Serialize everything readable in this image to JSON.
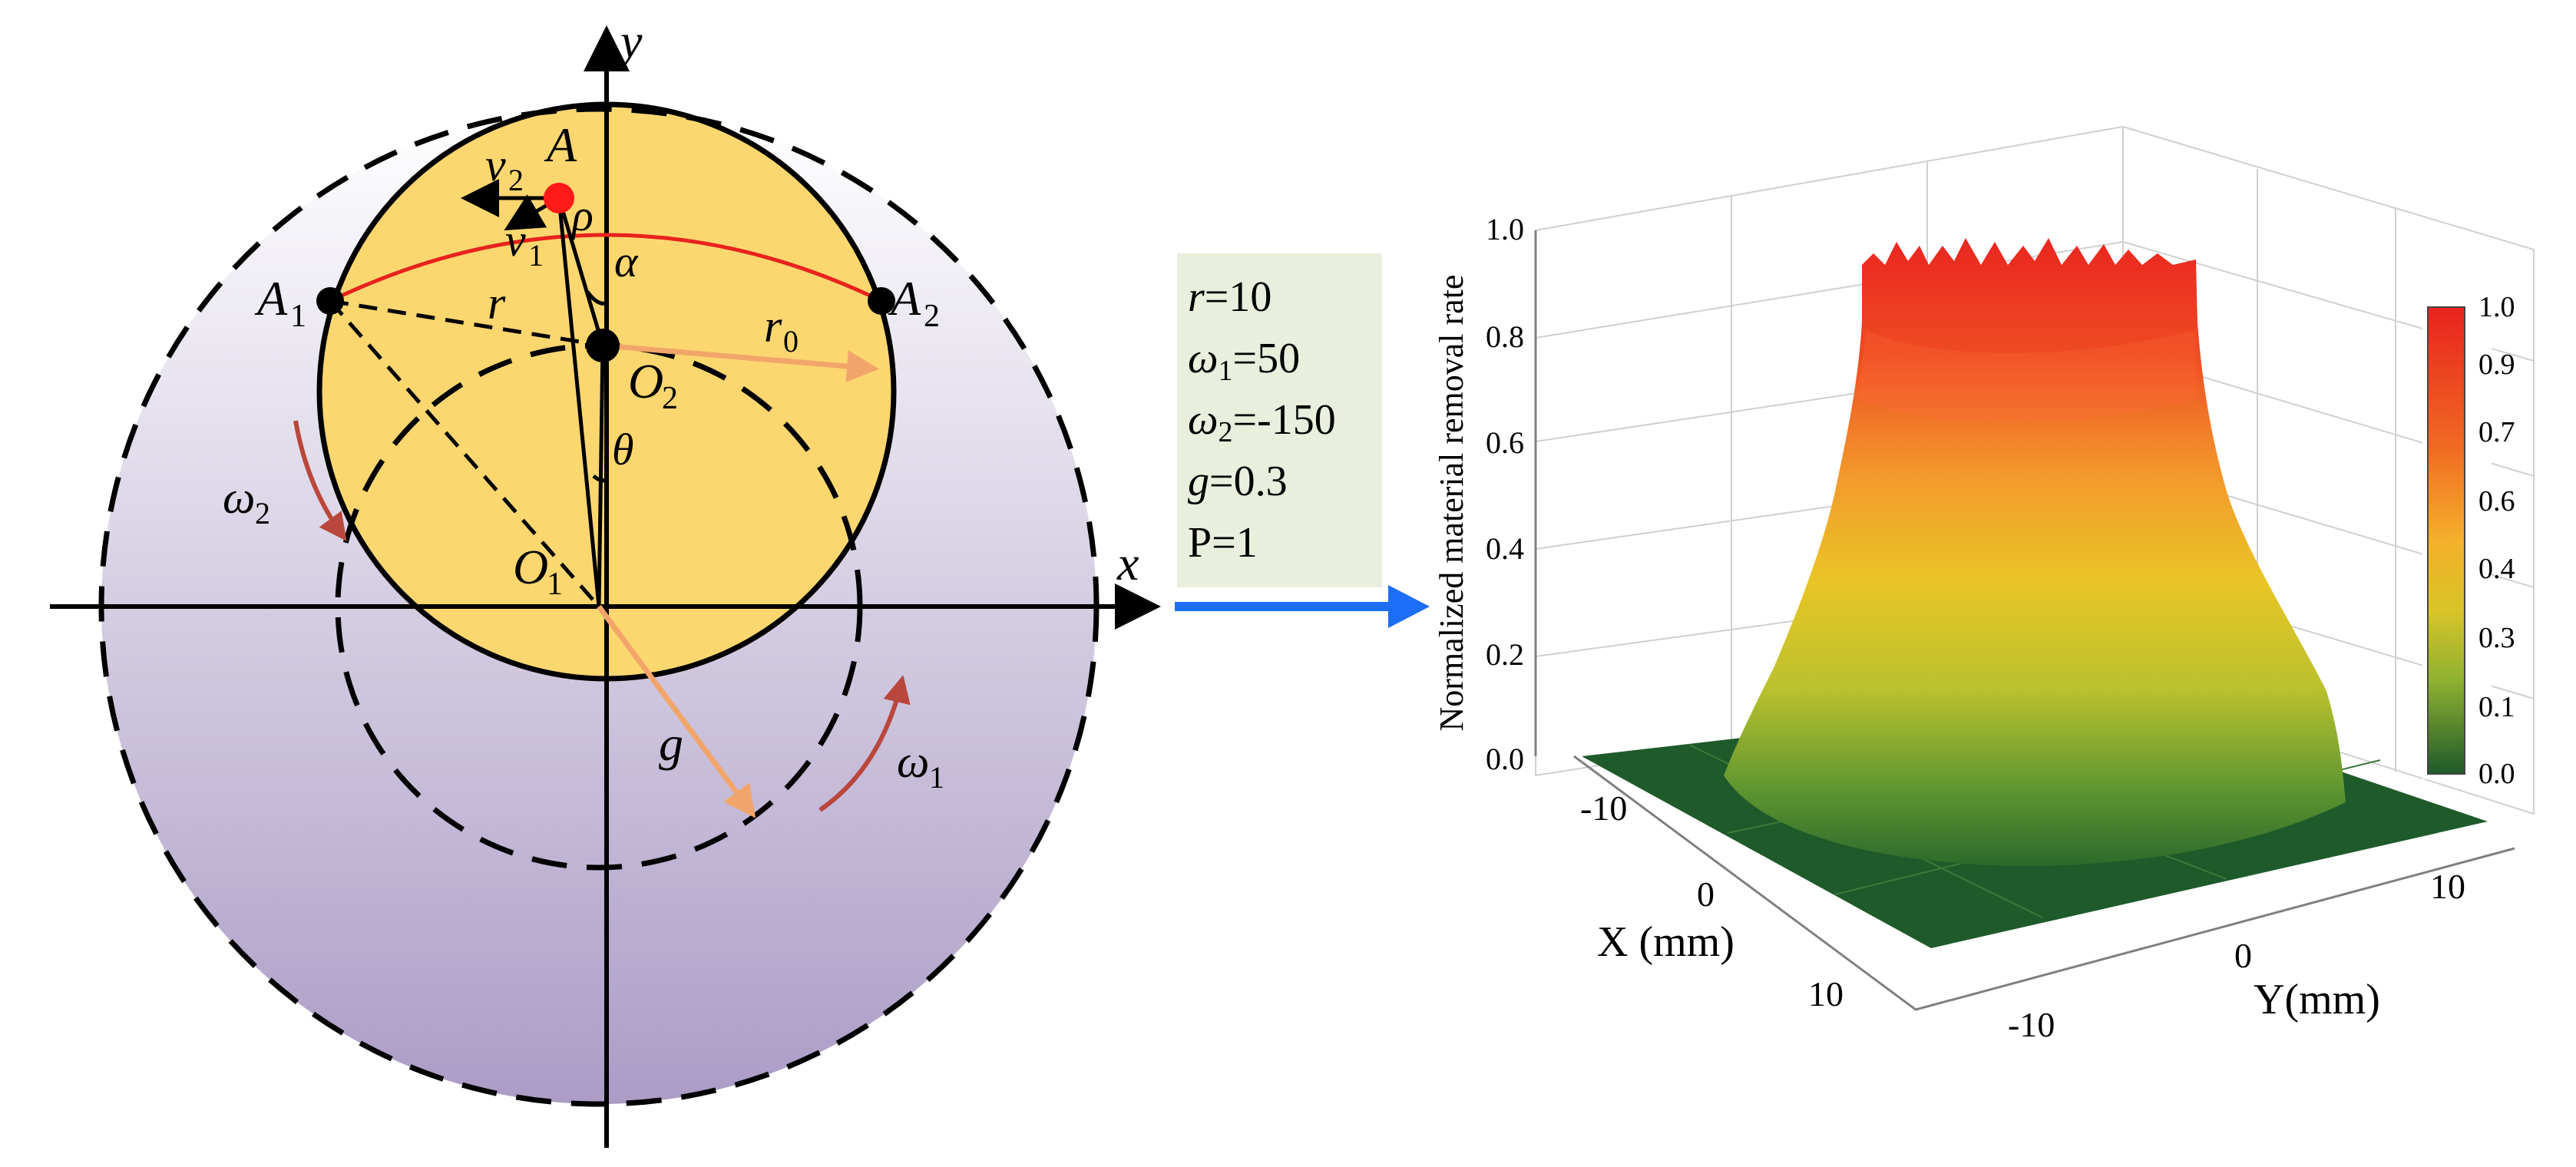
{
  "diagram": {
    "labels": {
      "x_axis": "x",
      "y_axis": "y",
      "point_A": "A",
      "point_A1_main": "A",
      "point_A1_sub": "1",
      "point_A2_main": "A",
      "point_A2_sub": "2",
      "center_O1_main": "O",
      "center_O1_sub": "1",
      "center_O2_main": "O",
      "center_O2_sub": "2",
      "v1_main": "v",
      "v1_sub": "1",
      "v2_main": "v",
      "v2_sub": "2",
      "rho": "ρ",
      "alpha": "α",
      "theta": "θ",
      "r": "r",
      "r0_main": "r",
      "r0_sub": "0",
      "g": "g",
      "omega1_main": "ω",
      "omega1_sub": "1",
      "omega2_main": "ω",
      "omega2_sub": "2"
    },
    "colors": {
      "small_disk_fill": "#fcd770",
      "large_disk_top": "#ffffff",
      "large_disk_bottom": "#ab9cc6",
      "trajectory": "#e8221c",
      "radius_arrow": "#f2a56a",
      "rotation_arrow": "#b9473c",
      "flow_arrow": "#1b6ef5",
      "param_box_bg": "#e8efdc"
    }
  },
  "parameters": {
    "r": {
      "sym": "r",
      "rest": "=10"
    },
    "w1": {
      "sym": "ω",
      "sub": "1",
      "rest": "=50"
    },
    "w2": {
      "sym": "ω",
      "sub": "2",
      "rest": "=-150"
    },
    "g": {
      "sym": "g",
      "rest": "=0.3"
    },
    "p": {
      "rest": "P=1"
    }
  },
  "chart_data": {
    "type": "surface3d",
    "title": "",
    "zlabel": "Normalized material removal rate",
    "xlabel": "X (mm)",
    "ylabel": "Y(mm)",
    "z_ticks": [
      "0.0",
      "0.2",
      "0.4",
      "0.6",
      "0.8",
      "1.0"
    ],
    "x_ticks": [
      "-10",
      "0",
      "10"
    ],
    "y_ticks": [
      "-10",
      "0",
      "10"
    ],
    "zlim": [
      0,
      1
    ],
    "colorbar": {
      "ticks": [
        "1.0",
        "0.9",
        "0.7",
        "0.6",
        "0.4",
        "0.3",
        "0.1",
        "0.0"
      ],
      "colors": [
        "#e8231e",
        "#f06a22",
        "#f8a32c",
        "#e9c526",
        "#b7c22c",
        "#6a9a30",
        "#1f5a2a"
      ]
    },
    "surface": {
      "description_profile": [
        {
          "radius_mm": 0,
          "z": 1.0
        },
        {
          "radius_mm": 4,
          "z": 0.98
        },
        {
          "radius_mm": 6,
          "z": 0.7
        },
        {
          "radius_mm": 8,
          "z": 0.35
        },
        {
          "radius_mm": 10,
          "z": 0.05
        },
        {
          "radius_mm": 13,
          "z": 0.0
        }
      ]
    }
  }
}
